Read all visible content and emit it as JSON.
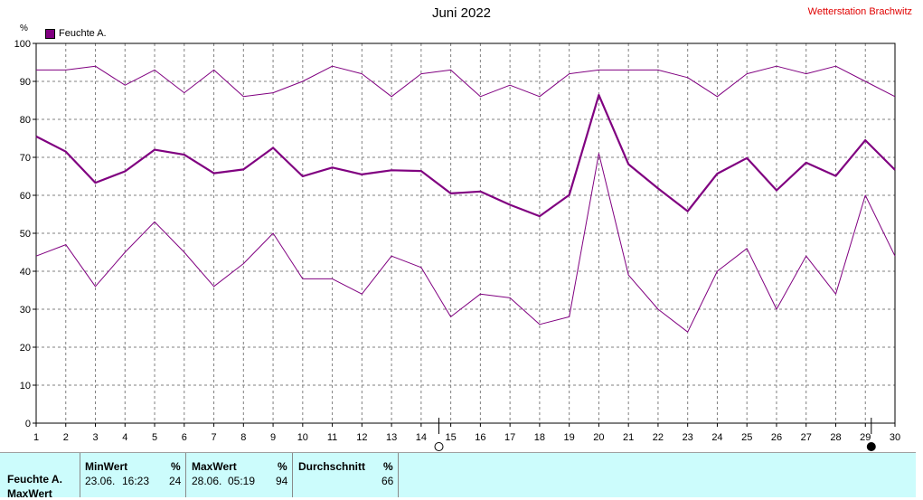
{
  "header": {
    "title": "Juni 2022",
    "station": "Wetterstation Brachwitz",
    "unit": "%",
    "legend_label": "Feuchte A."
  },
  "colors": {
    "series": "#800080",
    "station_text": "#e00000",
    "table_bg": "#ccfcfc",
    "grid": "#808080"
  },
  "chart_data": {
    "type": "line",
    "title": "Juni 2022",
    "ylabel": "%",
    "xlabel": "",
    "ylim": [
      0,
      100
    ],
    "xlim": [
      1,
      30
    ],
    "grid": true,
    "legend_position": "top-left",
    "x_ticks": [
      1,
      2,
      3,
      4,
      5,
      6,
      7,
      8,
      9,
      10,
      11,
      12,
      13,
      14,
      15,
      16,
      17,
      18,
      19,
      20,
      21,
      22,
      23,
      24,
      25,
      26,
      27,
      28,
      29,
      30
    ],
    "y_ticks": [
      0,
      10,
      20,
      30,
      40,
      50,
      60,
      70,
      80,
      90,
      100
    ],
    "x": [
      1,
      2,
      3,
      4,
      5,
      6,
      7,
      8,
      9,
      10,
      11,
      12,
      13,
      14,
      15,
      16,
      17,
      18,
      19,
      20,
      21,
      22,
      23,
      24,
      25,
      26,
      27,
      28,
      29,
      30
    ],
    "series": [
      {
        "name": "Feuchte A.",
        "values": [
          75.5,
          71.5,
          63.3,
          66.3,
          72,
          70.7,
          65.8,
          66.8,
          72.5,
          65,
          67.3,
          65.5,
          66.6,
          66.4,
          60.5,
          61,
          57.5,
          54.5,
          60.1,
          86.4,
          68.2,
          61.8,
          55.8,
          65.7,
          69.8,
          61.3,
          68.6,
          65.1,
          74.5,
          66.7
        ]
      },
      {
        "values": [
          93,
          93,
          94,
          89,
          93,
          87,
          93,
          86,
          87,
          90,
          94,
          92,
          86,
          92,
          93,
          86,
          89,
          86,
          92,
          93,
          93,
          93,
          91,
          86,
          92,
          94,
          92,
          94,
          90,
          86
        ]
      },
      {
        "values": [
          44,
          47,
          36,
          45,
          53,
          45,
          36,
          42,
          50,
          38,
          38,
          34,
          44,
          41,
          28,
          34,
          33,
          26,
          28,
          71,
          39,
          30,
          24,
          40,
          46,
          30,
          44,
          34,
          60,
          44
        ]
      }
    ],
    "markers": [
      {
        "type": "new-moon",
        "x": 14.6
      },
      {
        "type": "full-moon",
        "x": 29.2
      }
    ]
  },
  "table": {
    "columns": [
      {
        "header": "MinWert",
        "unit": "%",
        "date": "23.06.",
        "time": "16:23",
        "value": "24"
      },
      {
        "header": "MaxWert",
        "unit": "%",
        "date": "28.06.",
        "time": "05:19",
        "value": "94"
      },
      {
        "header": "Durchschnitt",
        "unit": "%",
        "value": "66"
      }
    ],
    "row_labels": [
      "Feuchte A.",
      "MaxWert"
    ]
  }
}
